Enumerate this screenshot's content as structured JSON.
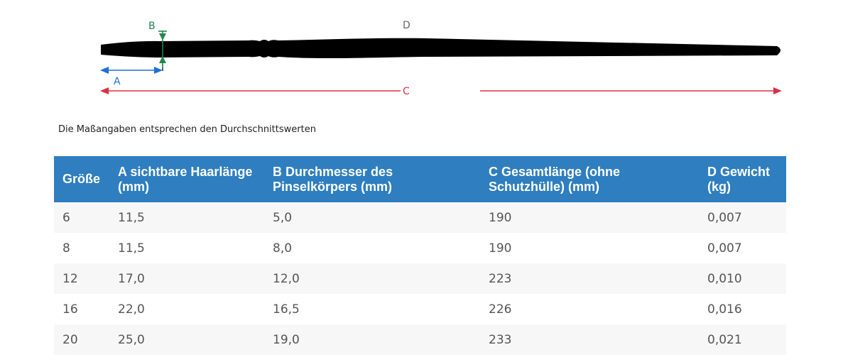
{
  "diagram": {
    "labels": {
      "a": "A",
      "b": "B",
      "c": "C",
      "d": "D"
    },
    "colors": {
      "brush": "#000000",
      "a": "#1f6fd6",
      "b": "#1f8a4c",
      "c": "#d9303f",
      "d": "#666666"
    }
  },
  "note": "Die Maßangaben entsprechen den Durchschnittswerten",
  "table": {
    "header_color": "#2e7ec0",
    "headers": [
      "Größe",
      "A sichtbare Haarlänge (mm)",
      "B Durchmesser des Pinselkörpers (mm)",
      "C Gesamtlänge (ohne Schutzhülle) (mm)",
      "D Gewicht (kg)"
    ],
    "rows": [
      [
        "6",
        "11,5",
        "5,0",
        "190",
        "0,007"
      ],
      [
        "8",
        "11,5",
        "8,0",
        "190",
        "0,007"
      ],
      [
        "12",
        "17,0",
        "12,0",
        "223",
        "0,010"
      ],
      [
        "16",
        "22,0",
        "16,5",
        "226",
        "0,016"
      ],
      [
        "20",
        "25,0",
        "19,0",
        "233",
        "0,021"
      ]
    ]
  }
}
